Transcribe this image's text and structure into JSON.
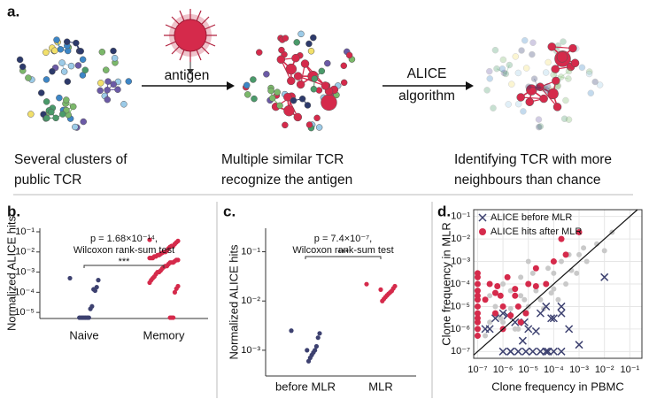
{
  "panel_labels": [
    "a.",
    "b.",
    "c.",
    "d."
  ],
  "panel_a": {
    "arrows": [
      {
        "label_lines": [
          "antigen"
        ]
      },
      {
        "label_lines": [
          "ALICE",
          "algorithm"
        ]
      }
    ],
    "captions": [
      [
        "Several clusters of",
        "public TCR"
      ],
      [
        "Multiple similar TCR",
        "recognize the antigen"
      ],
      [
        "Identifying TCR with more",
        "neighbours than chance"
      ]
    ]
  },
  "chart_data": [
    {
      "type": "strip",
      "ylabel": "Normalized ALICE hits",
      "categories": [
        "Naive",
        "Memory"
      ],
      "log_y": true,
      "ylim": [
        5e-06,
        0.15
      ],
      "yticks": [
        {
          "value": 1e-05,
          "label": "10⁻⁵"
        },
        {
          "value": 0.0001,
          "label": "10⁻⁴"
        },
        {
          "value": 0.001,
          "label": "10⁻³"
        },
        {
          "value": 0.01,
          "label": "10⁻²"
        },
        {
          "value": 0.1,
          "label": "10⁻¹"
        }
      ],
      "annotation": [
        "p = 1.68×10⁻¹⁴,",
        "Wilcoxon rank-sum test"
      ],
      "significance": "***",
      "series": [
        {
          "color": "#3d4170",
          "values": [
            0.0005,
            0.0004,
            0.00018,
            0.00012,
            0.00014,
            2e-05,
            1.5e-05,
            5.5e-06,
            5.5e-06,
            5.5e-06,
            5.5e-06,
            5.5e-06,
            5.5e-06,
            5.5e-06
          ]
        },
        {
          "color": "#d52a4b",
          "values": [
            0.04,
            0.035,
            0.03,
            0.025,
            0.02,
            0.02,
            0.018,
            0.015,
            0.012,
            0.01,
            0.01,
            0.009,
            0.008,
            0.007,
            0.007,
            0.006,
            0.006,
            0.005,
            0.005,
            0.005,
            0.004,
            0.004,
            0.0035,
            0.003,
            0.003,
            0.003,
            0.0025,
            0.002,
            0.002,
            0.0018,
            0.0015,
            0.0012,
            0.001,
            0.001,
            0.0008,
            0.0006,
            0.0005,
            0.0004,
            0.0003,
            0.0002,
            0.00015,
            0.0001,
            5.5e-06,
            5.5e-06,
            5.5e-06
          ]
        }
      ]
    },
    {
      "type": "strip",
      "ylabel": "Normalized ALICE hits",
      "categories": [
        "before MLR",
        "MLR"
      ],
      "log_y": true,
      "ylim": [
        0.0003,
        0.3
      ],
      "yticks": [
        {
          "value": 0.001,
          "label": "10⁻³"
        },
        {
          "value": 0.01,
          "label": "10⁻²"
        },
        {
          "value": 0.1,
          "label": "10⁻¹"
        }
      ],
      "annotation": [
        "p = 7.4×10⁻⁷,",
        "Wilcoxon rank-sum test"
      ],
      "significance": "***",
      "series": [
        {
          "color": "#3d4170",
          "values": [
            0.0025,
            0.0022,
            0.0018,
            0.0012,
            0.001,
            0.0009,
            0.0008,
            0.0007,
            0.0006,
            0.001
          ]
        },
        {
          "color": "#d52a4b",
          "values": [
            0.022,
            0.02,
            0.018,
            0.016,
            0.015,
            0.014,
            0.013,
            0.012,
            0.011,
            0.01,
            0.017
          ]
        }
      ]
    },
    {
      "type": "scatter",
      "xlabel": "Clone frequency in PBMC",
      "ylabel": "Clone frequency in MLR",
      "log_x": true,
      "log_y": true,
      "grid": true,
      "diagonal": true,
      "legend": "upper left",
      "xlim": [
        7e-08,
        0.3
      ],
      "ylim": [
        5e-08,
        0.2
      ],
      "xticks": [
        {
          "value": 1e-07,
          "label": "10⁻⁷"
        },
        {
          "value": 1e-06,
          "label": "10⁻⁶"
        },
        {
          "value": 1e-05,
          "label": "10⁻⁵"
        },
        {
          "value": 0.0001,
          "label": "10⁻⁴"
        },
        {
          "value": 0.001,
          "label": "10⁻³"
        },
        {
          "value": 0.01,
          "label": "10⁻²"
        },
        {
          "value": 0.1,
          "label": "10⁻¹"
        }
      ],
      "yticks": [
        {
          "value": 1e-07,
          "label": "10⁻⁷"
        },
        {
          "value": 1e-06,
          "label": "10⁻⁶"
        },
        {
          "value": 1e-05,
          "label": "10⁻⁵"
        },
        {
          "value": 0.0001,
          "label": "10⁻⁴"
        },
        {
          "value": 0.001,
          "label": "10⁻³"
        },
        {
          "value": 0.01,
          "label": "10⁻²"
        },
        {
          "value": 0.1,
          "label": "10⁻¹"
        }
      ],
      "series": [
        {
          "color": "#c9c9c9",
          "marker": "circle",
          "x": [
            1e-07,
            2e-07,
            3e-07,
            5e-07,
            8e-07,
            1e-06,
            1e-06,
            2e-06,
            2e-06,
            3e-06,
            5e-06,
            5e-06,
            8e-06,
            1e-05,
            1e-05,
            2e-05,
            3e-05,
            5e-05,
            8e-05,
            0.0001,
            0.0001,
            0.0002,
            0.0003,
            0.0005,
            0.001,
            0.002,
            0.005,
            0.01,
            0.02,
            3e-07,
            6e-07,
            4e-06,
            7e-06,
            1.5e-05,
            4e-05,
            6e-05,
            0.00015,
            0.0004,
            0.0008,
            0.0015
          ],
          "y": [
            1e-06,
            5e-07,
            2e-06,
            1e-05,
            3e-06,
            0.0001,
            2e-06,
            8e-06,
            5e-05,
            1e-06,
            3e-05,
            0.0002,
            6e-06,
            1e-05,
            0.001,
            5e-05,
            2e-05,
            0.0001,
            4e-05,
            0.0003,
            6e-05,
            0.001,
            0.0001,
            0.0004,
            0.002,
            0.001,
            0.006,
            0.003,
            0.02,
            3e-05,
            4e-06,
            1e-06,
            2e-05,
            0.0003,
            8e-06,
            0.0005,
            2e-05,
            0.002,
            0.0003,
            0.004
          ]
        },
        {
          "name": "ALICE before MLR",
          "color": "#3d4170",
          "marker": "x",
          "x": [
            1e-06,
            2e-06,
            4e-06,
            8e-06,
            1.5e-05,
            3e-05,
            6e-05,
            0.0001,
            0.0002,
            5e-07,
            3e-07,
            1e-06,
            3e-06,
            1e-05,
            5e-05,
            0.0001,
            0.0002,
            3e-05,
            6e-06,
            0.01,
            2e-05,
            0.0004,
            1.5e-06,
            7e-06,
            8e-05,
            0.0002,
            0.001,
            2e-06,
            5e-05,
            2e-07
          ],
          "y": [
            1e-07,
            1e-07,
            1e-07,
            1e-07,
            1e-07,
            1e-07,
            1e-07,
            1e-07,
            1e-07,
            3e-06,
            1e-06,
            5e-06,
            2e-06,
            1e-06,
            1e-05,
            3e-06,
            1e-05,
            5e-06,
            3e-07,
            0.0002,
            8e-07,
            1e-06,
            4e-06,
            2e-06,
            3e-06,
            5e-06,
            2e-07,
            1e-07,
            1e-07,
            1e-06
          ]
        },
        {
          "name": "ALICE hits after MLR",
          "color": "#d52a4b",
          "marker": "circle",
          "x": [
            1e-07,
            1e-07,
            1e-07,
            1e-07,
            1e-07,
            1e-07,
            1e-07,
            1e-07,
            1e-07,
            1e-07,
            1e-07,
            1e-07,
            2e-07,
            3e-07,
            5e-07,
            8e-07,
            1e-06,
            1.5e-06,
            2e-06,
            3e-06,
            5e-06,
            1e-05,
            2e-05,
            4e-06,
            6e-07,
            1e-06,
            3e-06,
            8e-06,
            2e-05,
            5e-05,
            0.0001,
            0.0003,
            0.001,
            0.0002,
            5e-07
          ],
          "y": [
            0.0002,
            0.0001,
            5e-05,
            2e-05,
            1e-05,
            5e-06,
            2e-06,
            1e-06,
            5e-07,
            0.0003,
            3e-05,
            3e-06,
            2e-05,
            0.0001,
            5e-06,
            3e-05,
            1e-05,
            0.0002,
            4e-06,
            6e-05,
            2e-06,
            0.0001,
            0.0005,
            1e-05,
            8e-05,
            1e-06,
            3e-05,
            5e-06,
            8e-05,
            0.0001,
            0.001,
            0.002,
            0.02,
            0.01,
            4e-05
          ]
        }
      ]
    }
  ]
}
